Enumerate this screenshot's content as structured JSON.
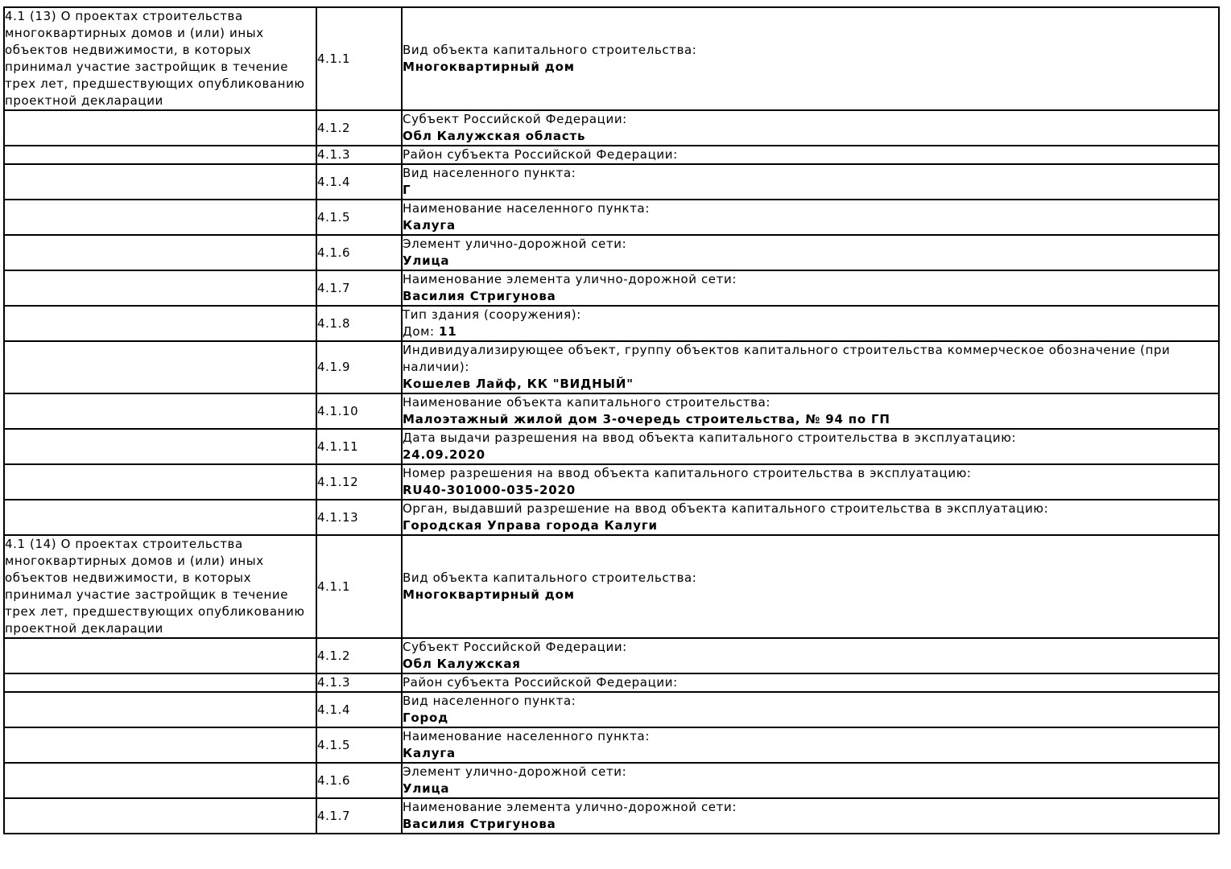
{
  "table": {
    "rows": [
      {
        "section": "4.1 (13) О проектах строительства многоквартирных домов и (или) иных объектов недвижимости, в которых принимал участие застройщик в течение трех лет, предшествующих опубликованию проектной декларации",
        "code": "4.1.1",
        "label": "Вид объекта капитального строительства:",
        "value": "Многоквартирный дом"
      },
      {
        "code": "4.1.2",
        "label": "Субъект Российской Федерации:",
        "value": "Обл Калужская область"
      },
      {
        "code": "4.1.3",
        "label": "Район субъекта Российской Федерации:"
      },
      {
        "code": "4.1.4",
        "label": "Вид населенного пункта:",
        "value": "Г"
      },
      {
        "code": "4.1.5",
        "label": "Наименование населенного пункта:",
        "value": "Калуга"
      },
      {
        "code": "4.1.6",
        "label": "Элемент улично-дорожной сети:",
        "value": "Улица"
      },
      {
        "code": "4.1.7",
        "label": "Наименование элемента улично-дорожной сети:",
        "value": "Василия Стригунова"
      },
      {
        "code": "4.1.8",
        "label": "Тип здания (сооружения):",
        "value_prefix": "Дом: ",
        "value": "11"
      },
      {
        "code": "4.1.9",
        "label": "Индивидуализирующее объект, группу объектов капитального строительства коммерческое обозначение (при наличии):",
        "value": "Кошелев Лайф, КК \"ВИДНЫЙ\""
      },
      {
        "code": "4.1.10",
        "label": "Наименование объекта капитального строительства:",
        "value": "Малоэтажный жилой дом 3-очередь строительства, № 94 по ГП"
      },
      {
        "code": "4.1.11",
        "label": "Дата выдачи разрешения на ввод объекта капитального строительства в эксплуатацию:",
        "value": "24.09.2020"
      },
      {
        "code": "4.1.12",
        "label": "Номер разрешения на ввод объекта капитального строительства в эксплуатацию:",
        "value": "RU40-301000-035-2020"
      },
      {
        "code": "4.1.13",
        "label": "Орган, выдавший разрешение на ввод объекта капитального строительства в эксплуатацию:",
        "value": "Городская Управа города Калуги"
      },
      {
        "section": "4.1 (14) О проектах строительства многоквартирных домов и (или) иных объектов недвижимости, в которых принимал участие застройщик в течение трех лет, предшествующих опубликованию проектной декларации",
        "code": "4.1.1",
        "label": "Вид объекта капитального строительства:",
        "value": "Многоквартирный дом"
      },
      {
        "code": "4.1.2",
        "label": "Субъект Российской Федерации:",
        "value": "Обл Калужская"
      },
      {
        "code": "4.1.3",
        "label": "Район субъекта Российской Федерации:"
      },
      {
        "code": "4.1.4",
        "label": "Вид населенного пункта:",
        "value": "Город"
      },
      {
        "code": "4.1.5",
        "label": "Наименование населенного пункта:",
        "value": "Калуга"
      },
      {
        "code": "4.1.6",
        "label": "Элемент улично-дорожной сети:",
        "value": "Улица"
      },
      {
        "code": "4.1.7",
        "label": "Наименование элемента улично-дорожной сети:",
        "value": "Василия Стригунова"
      }
    ]
  }
}
